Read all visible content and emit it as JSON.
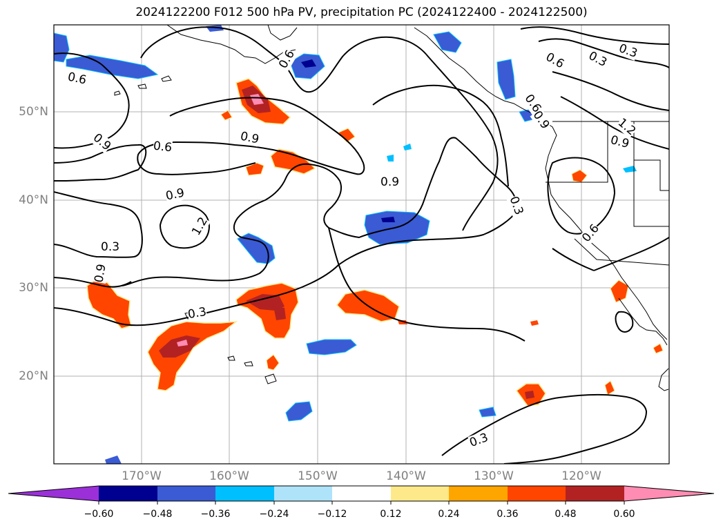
{
  "title": "2024122200 F012 500 hPa PV, precipitation PC (2024122400 - 2024122500)",
  "map": {
    "lat_labels": [
      "50°N",
      "40°N",
      "30°N",
      "20°N"
    ],
    "lon_labels": [
      "170°W",
      "160°W",
      "150°W",
      "140°W",
      "130°W",
      "120°W"
    ],
    "contour_labels": [
      "0.6",
      "0.6",
      "0.6",
      "0.3",
      "0.3",
      "0.9",
      "0.9",
      "0.6",
      "0.9",
      "1.2",
      "0.9",
      "0.9",
      "0.3",
      "0.6",
      "0.3",
      "0.9",
      "0.3",
      "1.2",
      "0.9",
      "0.3",
      "0.6"
    ]
  },
  "colorbar": {
    "colors": [
      "#9b30d9",
      "#000090",
      "#3a5bd4",
      "#00bfff",
      "#aee3fa",
      "#ffffff",
      "#fde98a",
      "#ffa500",
      "#ff4500",
      "#b22222",
      "#ff8cb3"
    ],
    "ticks": [
      "−0.60",
      "−0.48",
      "−0.36",
      "−0.24",
      "−0.12",
      "0.12",
      "0.24",
      "0.36",
      "0.48",
      "0.60"
    ]
  }
}
